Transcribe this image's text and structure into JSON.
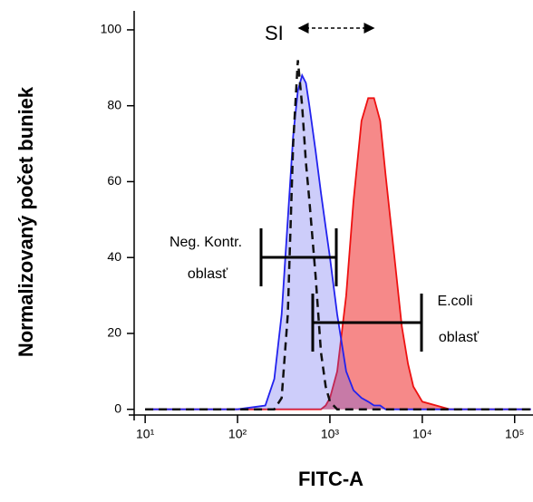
{
  "chart_data": {
    "type": "line",
    "x_label": "FITC-A",
    "y_label": "Normalizovaný počet buniek",
    "annotations": [
      "SI",
      "Neg. Kontr.",
      "oblasť",
      "E.coli",
      "oblasť"
    ],
    "x": [
      10,
      100,
      200,
      250,
      300,
      350,
      400,
      450,
      500,
      550,
      600,
      700,
      800,
      900,
      1000,
      1200,
      1500,
      1800,
      2200,
      2600,
      3000,
      3500,
      4000,
      5000,
      6000,
      7000,
      8000,
      10000,
      20000,
      150000
    ],
    "series": [
      {
        "color": "#ee1111",
        "fill": "rgba(238,40,40,0.55)",
        "values": [
          0,
          0,
          0,
          0,
          0,
          0,
          0,
          0,
          0,
          0,
          0,
          0,
          0,
          1,
          3,
          10,
          30,
          55,
          76,
          82,
          82,
          76,
          62,
          40,
          22,
          12,
          6,
          2,
          0,
          0
        ]
      },
      {
        "color": "#2222ee",
        "fill": "rgba(90,90,240,0.3)",
        "values": [
          0,
          0,
          1,
          8,
          25,
          50,
          72,
          84,
          88,
          86,
          80,
          68,
          57,
          48,
          40,
          25,
          10,
          5,
          3,
          2,
          1,
          1,
          0,
          0,
          0,
          0,
          0,
          0,
          0,
          0
        ]
      },
      {
        "color": "#111111",
        "dash": true,
        "values": [
          0,
          0,
          0,
          0,
          3,
          25,
          70,
          92,
          80,
          65,
          55,
          35,
          15,
          6,
          2,
          0,
          0,
          0,
          0,
          0,
          0,
          0,
          0,
          0,
          0,
          0,
          0,
          0,
          0,
          0
        ]
      }
    ],
    "xscale": "log",
    "xlim": [
      7.6,
      158000
    ],
    "xticks": [
      {
        "value": 10,
        "label": "10¹"
      },
      {
        "value": 100,
        "label": "10²"
      },
      {
        "value": 1000,
        "label": "10³"
      },
      {
        "value": 10000,
        "label": "10⁴"
      },
      {
        "value": 100000,
        "label": "10⁵"
      }
    ],
    "ylim": [
      -1.5,
      105
    ],
    "yticks": [
      0,
      20,
      40,
      60,
      80,
      100
    ]
  }
}
